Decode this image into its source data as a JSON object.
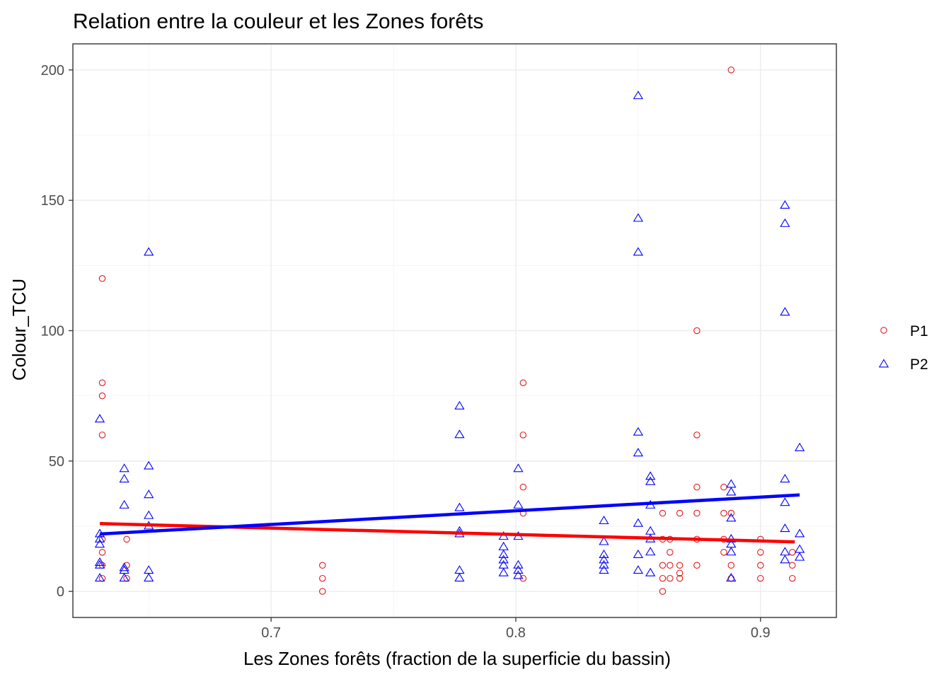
{
  "chart_data": {
    "type": "scatter",
    "title": "Relation entre la couleur et les Zones forêts",
    "xlabel": "Les Zones forêts (fraction de la superficie du bassin)",
    "ylabel": "Colour_TCU",
    "xlim": [
      0.619,
      0.931
    ],
    "ylim": [
      -10,
      210
    ],
    "x_ticks": [
      0.7,
      0.8,
      0.9
    ],
    "x_tick_labels": [
      "0.7",
      "0.8",
      "0.9"
    ],
    "y_ticks": [
      0,
      50,
      100,
      150,
      200
    ],
    "y_tick_labels": [
      "0",
      "50",
      "100",
      "150",
      "200"
    ],
    "grid": true,
    "legend_position": "right",
    "series": [
      {
        "name": "P1",
        "marker": "circle",
        "color": "#e41a1c",
        "fit_line_color": "#ff0000",
        "fit_line": [
          [
            0.63,
            26.0
          ],
          [
            0.914,
            19.0
          ]
        ],
        "points": [
          [
            0.631,
            120
          ],
          [
            0.631,
            80
          ],
          [
            0.631,
            75
          ],
          [
            0.631,
            60
          ],
          [
            0.631,
            20
          ],
          [
            0.631,
            15
          ],
          [
            0.631,
            10
          ],
          [
            0.631,
            5
          ],
          [
            0.641,
            20
          ],
          [
            0.641,
            10
          ],
          [
            0.641,
            5
          ],
          [
            0.721,
            10
          ],
          [
            0.721,
            5
          ],
          [
            0.721,
            0
          ],
          [
            0.803,
            80
          ],
          [
            0.803,
            60
          ],
          [
            0.803,
            40
          ],
          [
            0.803,
            30
          ],
          [
            0.803,
            5
          ],
          [
            0.86,
            30
          ],
          [
            0.86,
            20
          ],
          [
            0.86,
            10
          ],
          [
            0.86,
            5
          ],
          [
            0.86,
            0
          ],
          [
            0.863,
            20
          ],
          [
            0.863,
            15
          ],
          [
            0.863,
            10
          ],
          [
            0.863,
            5
          ],
          [
            0.867,
            30
          ],
          [
            0.867,
            10
          ],
          [
            0.867,
            7
          ],
          [
            0.867,
            5
          ],
          [
            0.874,
            100
          ],
          [
            0.874,
            60
          ],
          [
            0.874,
            40
          ],
          [
            0.874,
            30
          ],
          [
            0.874,
            20
          ],
          [
            0.874,
            10
          ],
          [
            0.885,
            40
          ],
          [
            0.885,
            30
          ],
          [
            0.885,
            20
          ],
          [
            0.885,
            15
          ],
          [
            0.888,
            200
          ],
          [
            0.888,
            30
          ],
          [
            0.888,
            10
          ],
          [
            0.888,
            5
          ],
          [
            0.9,
            20
          ],
          [
            0.9,
            15
          ],
          [
            0.9,
            10
          ],
          [
            0.9,
            5
          ],
          [
            0.913,
            15
          ],
          [
            0.913,
            10
          ],
          [
            0.913,
            5
          ]
        ]
      },
      {
        "name": "P2",
        "marker": "triangle",
        "color": "#0000ff",
        "fit_line_color": "#0000ff",
        "fit_line": [
          [
            0.63,
            22.0
          ],
          [
            0.916,
            37.0
          ]
        ],
        "points": [
          [
            0.63,
            66
          ],
          [
            0.63,
            22
          ],
          [
            0.63,
            20
          ],
          [
            0.63,
            18
          ],
          [
            0.63,
            11
          ],
          [
            0.63,
            10
          ],
          [
            0.63,
            5
          ],
          [
            0.64,
            47
          ],
          [
            0.64,
            43
          ],
          [
            0.64,
            33
          ],
          [
            0.64,
            9
          ],
          [
            0.64,
            8
          ],
          [
            0.64,
            5
          ],
          [
            0.65,
            130
          ],
          [
            0.65,
            48
          ],
          [
            0.65,
            37
          ],
          [
            0.65,
            29
          ],
          [
            0.65,
            25
          ],
          [
            0.65,
            8
          ],
          [
            0.65,
            5
          ],
          [
            0.777,
            71
          ],
          [
            0.777,
            60
          ],
          [
            0.777,
            32
          ],
          [
            0.777,
            23
          ],
          [
            0.777,
            22
          ],
          [
            0.777,
            8
          ],
          [
            0.777,
            5
          ],
          [
            0.795,
            21
          ],
          [
            0.795,
            17
          ],
          [
            0.795,
            14
          ],
          [
            0.795,
            12
          ],
          [
            0.795,
            10
          ],
          [
            0.795,
            7
          ],
          [
            0.801,
            47
          ],
          [
            0.801,
            33
          ],
          [
            0.801,
            21
          ],
          [
            0.801,
            10
          ],
          [
            0.801,
            8
          ],
          [
            0.801,
            6
          ],
          [
            0.836,
            27
          ],
          [
            0.836,
            19
          ],
          [
            0.836,
            14
          ],
          [
            0.836,
            12
          ],
          [
            0.836,
            10
          ],
          [
            0.836,
            8
          ],
          [
            0.85,
            190
          ],
          [
            0.85,
            143
          ],
          [
            0.85,
            130
          ],
          [
            0.85,
            61
          ],
          [
            0.85,
            53
          ],
          [
            0.85,
            26
          ],
          [
            0.85,
            14
          ],
          [
            0.85,
            8
          ],
          [
            0.855,
            44
          ],
          [
            0.855,
            42
          ],
          [
            0.855,
            33
          ],
          [
            0.855,
            23
          ],
          [
            0.855,
            20
          ],
          [
            0.855,
            15
          ],
          [
            0.855,
            7
          ],
          [
            0.888,
            41
          ],
          [
            0.888,
            38
          ],
          [
            0.888,
            28
          ],
          [
            0.888,
            20
          ],
          [
            0.888,
            18
          ],
          [
            0.888,
            15
          ],
          [
            0.888,
            5
          ],
          [
            0.91,
            148
          ],
          [
            0.91,
            141
          ],
          [
            0.91,
            107
          ],
          [
            0.91,
            43
          ],
          [
            0.91,
            34
          ],
          [
            0.91,
            24
          ],
          [
            0.91,
            15
          ],
          [
            0.91,
            12
          ],
          [
            0.916,
            55
          ],
          [
            0.916,
            22
          ],
          [
            0.916,
            16
          ],
          [
            0.916,
            13
          ]
        ]
      }
    ]
  }
}
